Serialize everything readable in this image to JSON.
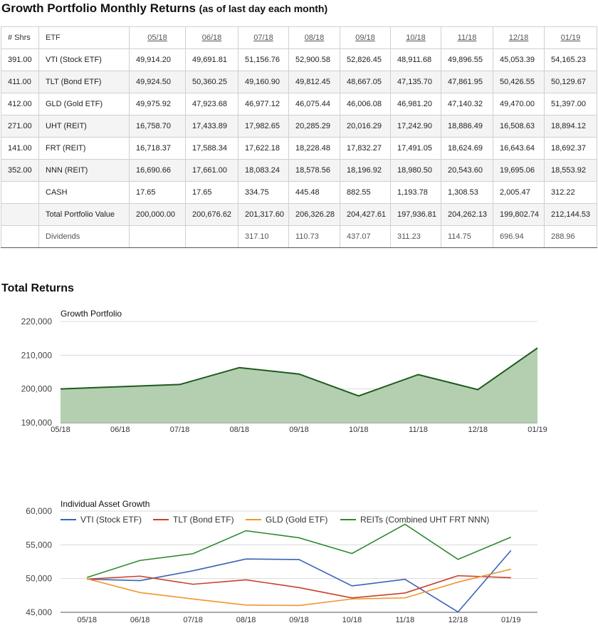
{
  "header": {
    "title": "Growth Portfolio Monthly Returns",
    "subtitle": "(as of last day each month)"
  },
  "table": {
    "headers": [
      "# Shrs",
      "ETF",
      "05/18",
      "06/18",
      "07/18",
      "08/18",
      "09/18",
      "10/18",
      "11/18",
      "12/18",
      "01/19"
    ],
    "rows": [
      [
        "391.00",
        "VTI (Stock ETF)",
        "49,914.20",
        "49,691.81",
        "51,156.76",
        "52,900.58",
        "52,826.45",
        "48,911.68",
        "49,896.55",
        "45,053.39",
        "54,165.23"
      ],
      [
        "411.00",
        "TLT (Bond ETF)",
        "49,924.50",
        "50,360.25",
        "49,160.90",
        "49,812.45",
        "48,667.05",
        "47,135.70",
        "47,861.95",
        "50,426.55",
        "50,129.67"
      ],
      [
        "412.00",
        "GLD (Gold ETF)",
        "49,975.92",
        "47,923.68",
        "46,977.12",
        "46,075.44",
        "46,006.08",
        "46,981.20",
        "47,140.32",
        "49,470.00",
        "51,397.00"
      ],
      [
        "271.00",
        "UHT (REIT)",
        "16,758.70",
        "17,433.89",
        "17,982.65",
        "20,285.29",
        "20,016.29",
        "17,242.90",
        "18,886.49",
        "16,508.63",
        "18,894.12"
      ],
      [
        "141.00",
        "FRT (REIT)",
        "16,718.37",
        "17,588.34",
        "17,622.18",
        "18,228.48",
        "17,832.27",
        "17,491.05",
        "18,624.69",
        "16,643.64",
        "18,692.37"
      ],
      [
        "352.00",
        "NNN (REIT)",
        "16,690.66",
        "17,661.00",
        "18,083.24",
        "18,578.56",
        "18,196.92",
        "18,980.50",
        "20,543.60",
        "19,695.06",
        "18,553.92"
      ],
      [
        "",
        "CASH",
        "17.65",
        "17.65",
        "334.75",
        "445.48",
        "882.55",
        "1,193.78",
        "1,308.53",
        "2,005.47",
        "312.22"
      ],
      [
        "",
        "Total Portfolio Value",
        "200,000.00",
        "200,676.62",
        "201,317.60",
        "206,326.28",
        "204,427.61",
        "197,936.81",
        "204,262.13",
        "199,802.74",
        "212,144.53"
      ],
      [
        "",
        "Dividends",
        "",
        "",
        "317.10",
        "110.73",
        "437.07",
        "311.23",
        "114.75",
        "696.94",
        "288.96"
      ]
    ]
  },
  "section_title": "Total Returns",
  "chart_data": [
    {
      "type": "area",
      "title": "Growth Portfolio",
      "x": [
        "05/18",
        "06/18",
        "07/18",
        "08/18",
        "09/18",
        "10/18",
        "11/18",
        "12/18",
        "01/19"
      ],
      "series": [
        {
          "values": [
            200000.0,
            200676.62,
            201317.6,
            206326.28,
            204427.61,
            197936.81,
            204262.13,
            199802.74,
            212144.53
          ]
        }
      ],
      "ylim": [
        190000,
        220000
      ],
      "yticks": [
        190000,
        200000,
        210000,
        220000
      ],
      "ytick_labels": [
        "190,000",
        "200,000",
        "210,000",
        "220,000"
      ],
      "grid": true,
      "fill_color": "#b3cfb0",
      "line_color": "#1e5a1e"
    },
    {
      "type": "line",
      "title": "Individual Asset Growth",
      "x": [
        "05/18",
        "06/18",
        "07/18",
        "08/18",
        "09/18",
        "10/18",
        "11/18",
        "12/18",
        "01/19"
      ],
      "series": [
        {
          "name": "VTI (Stock ETF)",
          "color": "#3a62b8",
          "values": [
            49914.2,
            49691.81,
            51156.76,
            52900.58,
            52826.45,
            48911.68,
            49896.55,
            45053.39,
            54165.23
          ]
        },
        {
          "name": "TLT (Bond ETF)",
          "color": "#c9402a",
          "values": [
            49924.5,
            50360.25,
            49160.9,
            49812.45,
            48667.05,
            47135.7,
            47861.95,
            50426.55,
            50129.67
          ]
        },
        {
          "name": "GLD (Gold ETF)",
          "color": "#f0962e",
          "values": [
            49975.92,
            47923.68,
            46977.12,
            46075.44,
            46006.08,
            46981.2,
            47140.32,
            49470.0,
            51397.0
          ]
        },
        {
          "name": "REITs (Combined UHT FRT NNN)",
          "color": "#2f8a2f",
          "values": [
            50167.73,
            52683.23,
            53688.07,
            57092.33,
            56045.48,
            53714.45,
            58054.78,
            52847.33,
            56140.41
          ]
        }
      ],
      "ylim": [
        45000,
        60000
      ],
      "yticks": [
        45000,
        50000,
        55000,
        60000
      ],
      "ytick_labels": [
        "45,000",
        "50,000",
        "55,000",
        "60,000"
      ],
      "grid": true,
      "legend": "top"
    }
  ]
}
